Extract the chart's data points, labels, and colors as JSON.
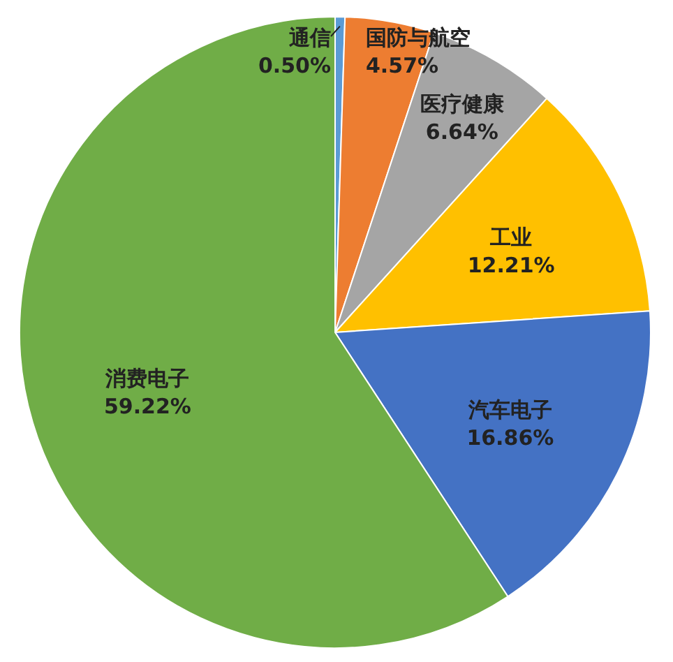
{
  "chart_data": {
    "type": "pie",
    "categories": [
      "通信",
      "国防与航空",
      "医疗健康",
      "工业",
      "汽车电子",
      "消费电子"
    ],
    "values": [
      0.5,
      4.57,
      6.64,
      12.21,
      16.86,
      59.22
    ],
    "colors": [
      "#5b9bd5",
      "#ed7d31",
      "#a5a5a5",
      "#ffc000",
      "#4472c4",
      "#70ad47"
    ],
    "value_labels": [
      "0.50%",
      "4.57%",
      "6.64%",
      "12.21%",
      "16.86%",
      "59.22%"
    ]
  }
}
